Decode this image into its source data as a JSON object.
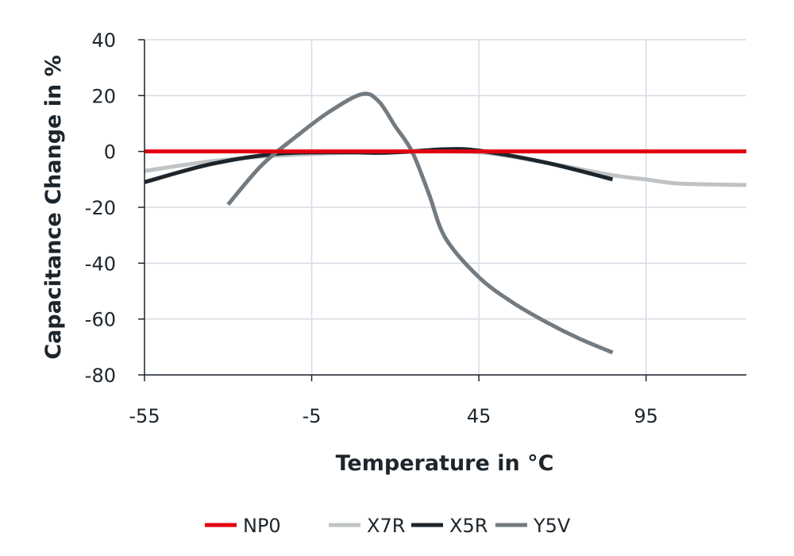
{
  "chart_data": {
    "type": "line",
    "xlabel": "Temperature in °C",
    "ylabel": "Capacitance Change in %",
    "xlim": [
      -55,
      125
    ],
    "ylim": [
      -80,
      40
    ],
    "xticks": [
      -55,
      -5,
      45,
      95
    ],
    "yticks": [
      40,
      20,
      0,
      -20,
      -40,
      -60,
      -80
    ],
    "grid": true,
    "legend": "bottom",
    "series": [
      {
        "name": "NP0",
        "color": "#e2000f",
        "x": [
          -55,
          125
        ],
        "y": [
          0,
          0
        ]
      },
      {
        "name": "X7R",
        "color": "#bfc3c5",
        "x": [
          -55,
          -35,
          -15,
          5,
          25,
          45,
          65,
          85,
          95,
          105,
          125
        ],
        "y": [
          -7,
          -3.5,
          -1.5,
          -0.5,
          0,
          -0.3,
          -4,
          -8.5,
          -10,
          -11.5,
          -12
        ]
      },
      {
        "name": "X5R",
        "color": "#1d252c",
        "x": [
          -55,
          -35,
          -15,
          5,
          15,
          25,
          35,
          45,
          65,
          85
        ],
        "y": [
          -11,
          -4.5,
          -0.8,
          -0.3,
          -0.5,
          0,
          0.8,
          0.3,
          -4,
          -10
        ]
      },
      {
        "name": "Y5V",
        "color": "#737b81",
        "x": [
          -30,
          -20,
          -10,
          0,
          10,
          15,
          20,
          25,
          30,
          35,
          45,
          55,
          65,
          75,
          85
        ],
        "y": [
          -19,
          -5,
          5,
          14,
          20.5,
          18,
          9,
          0,
          -15,
          -31,
          -45,
          -54,
          -61,
          -67,
          -72
        ]
      }
    ]
  }
}
